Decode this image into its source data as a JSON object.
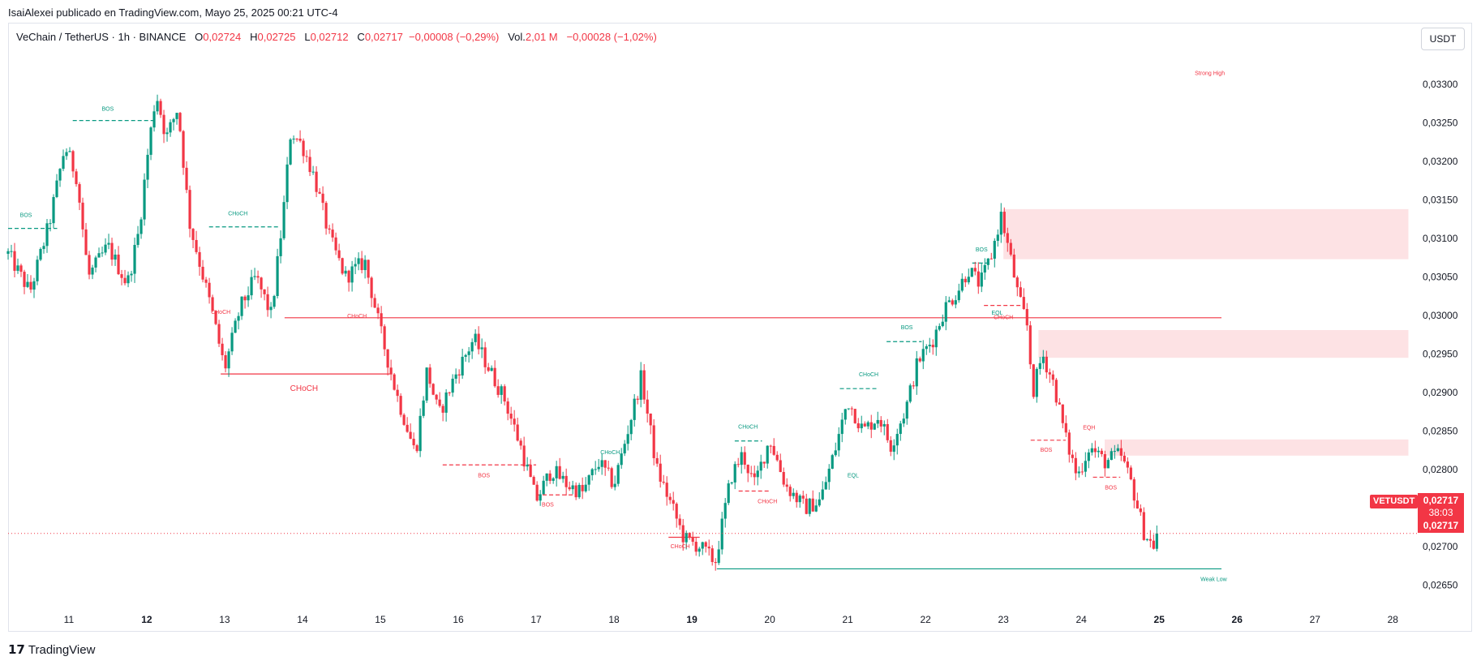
{
  "header": {
    "publisher": "IsaiAlexei publicado en TradingView.com, Mayo 25, 2025 00:21 UTC-4"
  },
  "legend": {
    "symbol": "VeChain / TetherUS · 1h · BINANCE",
    "open_label": "O",
    "open": "0,02724",
    "high_label": "H",
    "high": "0,02725",
    "low_label": "L",
    "low": "0,02712",
    "close_label": "C",
    "close": "0,02717",
    "change": "−0,00008 (−0,29%)",
    "vol_label": "Vol.",
    "vol": "2,01 M",
    "vol_change": "−0,00028 (−1,02%)"
  },
  "currency": "USDT",
  "footer": {
    "brand": "TradingView",
    "logo_icon": "tradingview-logo-icon"
  },
  "price_badge": {
    "symbol": "VETUSDT",
    "price": "0,02717",
    "countdown": "38:03",
    "price2": "0,02717"
  },
  "colors": {
    "up": "#089981",
    "down": "#f23645",
    "zone": "#fde2e4"
  },
  "chart_data": {
    "type": "candlestick",
    "y_range": [
      0.02622,
      0.0338
    ],
    "x_range": [
      10.22,
      28.32
    ],
    "y_ticks": [
      "0,03300",
      "0,03250",
      "0,03200",
      "0,03150",
      "0,03100",
      "0,03050",
      "0,03000",
      "0,02950",
      "0,02900",
      "0,02850",
      "0,02800",
      "0,02750",
      "0,02700",
      "0,02650"
    ],
    "y_tick_values": [
      0.033,
      0.0325,
      0.032,
      0.0315,
      0.031,
      0.0305,
      0.03,
      0.0295,
      0.029,
      0.0285,
      0.028,
      0.0275,
      0.027,
      0.0265
    ],
    "x_ticks": [
      {
        "day": 11,
        "label": "11",
        "bold": false
      },
      {
        "day": 12,
        "label": "12",
        "bold": true
      },
      {
        "day": 13,
        "label": "13",
        "bold": false
      },
      {
        "day": 14,
        "label": "14",
        "bold": false
      },
      {
        "day": 15,
        "label": "15",
        "bold": false
      },
      {
        "day": 16,
        "label": "16",
        "bold": false
      },
      {
        "day": 17,
        "label": "17",
        "bold": false
      },
      {
        "day": 18,
        "label": "18",
        "bold": false
      },
      {
        "day": 19,
        "label": "19",
        "bold": true
      },
      {
        "day": 20,
        "label": "20",
        "bold": false
      },
      {
        "day": 21,
        "label": "21",
        "bold": false
      },
      {
        "day": 22,
        "label": "22",
        "bold": false
      },
      {
        "day": 23,
        "label": "23",
        "bold": false
      },
      {
        "day": 24,
        "label": "24",
        "bold": false
      },
      {
        "day": 25,
        "label": "25",
        "bold": true
      },
      {
        "day": 26,
        "label": "26",
        "bold": true
      },
      {
        "day": 27,
        "label": "27",
        "bold": false
      },
      {
        "day": 28,
        "label": "28",
        "bold": false
      }
    ],
    "path_points": [
      [
        10.22,
        0.0308
      ],
      [
        10.5,
        0.0303
      ],
      [
        10.75,
        0.0312
      ],
      [
        10.95,
        0.0322
      ],
      [
        11.1,
        0.0318
      ],
      [
        11.25,
        0.0305
      ],
      [
        11.5,
        0.0309
      ],
      [
        11.75,
        0.0304
      ],
      [
        11.9,
        0.0311
      ],
      [
        12.0,
        0.032
      ],
      [
        12.12,
        0.0329
      ],
      [
        12.25,
        0.0323
      ],
      [
        12.4,
        0.0327
      ],
      [
        12.55,
        0.0312
      ],
      [
        12.7,
        0.0306
      ],
      [
        12.85,
        0.03
      ],
      [
        13.0,
        0.0293
      ],
      [
        13.2,
        0.0301
      ],
      [
        13.4,
        0.0305
      ],
      [
        13.6,
        0.03
      ],
      [
        13.75,
        0.0313
      ],
      [
        13.85,
        0.0324
      ],
      [
        14.0,
        0.0322
      ],
      [
        14.15,
        0.0318
      ],
      [
        14.35,
        0.031
      ],
      [
        14.55,
        0.0305
      ],
      [
        14.8,
        0.0307
      ],
      [
        15.0,
        0.0298
      ],
      [
        15.2,
        0.029
      ],
      [
        15.45,
        0.0282
      ],
      [
        15.6,
        0.0293
      ],
      [
        15.75,
        0.0287
      ],
      [
        15.95,
        0.0292
      ],
      [
        16.2,
        0.0297
      ],
      [
        16.4,
        0.0293
      ],
      [
        16.6,
        0.0289
      ],
      [
        16.8,
        0.0283
      ],
      [
        17.0,
        0.0276
      ],
      [
        17.2,
        0.028
      ],
      [
        17.4,
        0.0278
      ],
      [
        17.6,
        0.0277
      ],
      [
        17.8,
        0.0281
      ],
      [
        18.0,
        0.0278
      ],
      [
        18.15,
        0.0284
      ],
      [
        18.35,
        0.0292
      ],
      [
        18.55,
        0.028
      ],
      [
        18.75,
        0.0275
      ],
      [
        18.9,
        0.0271
      ],
      [
        19.1,
        0.027
      ],
      [
        19.3,
        0.0268
      ],
      [
        19.5,
        0.0279
      ],
      [
        19.65,
        0.0282
      ],
      [
        19.8,
        0.0278
      ],
      [
        20.0,
        0.0284
      ],
      [
        20.2,
        0.0278
      ],
      [
        20.45,
        0.0275
      ],
      [
        20.65,
        0.0276
      ],
      [
        20.85,
        0.0283
      ],
      [
        21.0,
        0.0289
      ],
      [
        21.2,
        0.0285
      ],
      [
        21.4,
        0.0287
      ],
      [
        21.55,
        0.0283
      ],
      [
        21.75,
        0.0288
      ],
      [
        21.9,
        0.0294
      ],
      [
        22.1,
        0.0297
      ],
      [
        22.25,
        0.0301
      ],
      [
        22.4,
        0.0303
      ],
      [
        22.55,
        0.0306
      ],
      [
        22.7,
        0.0304
      ],
      [
        22.85,
        0.0308
      ],
      [
        22.97,
        0.0313
      ],
      [
        23.1,
        0.0307
      ],
      [
        23.2,
        0.0302
      ],
      [
        23.3,
        0.0299
      ],
      [
        23.38,
        0.029
      ],
      [
        23.5,
        0.0295
      ],
      [
        23.65,
        0.0291
      ],
      [
        23.8,
        0.0284
      ],
      [
        23.95,
        0.0279
      ],
      [
        24.1,
        0.0283
      ],
      [
        24.3,
        0.0281
      ],
      [
        24.5,
        0.0282
      ],
      [
        24.65,
        0.0278
      ],
      [
        24.8,
        0.0272
      ],
      [
        24.92,
        0.027
      ],
      [
        25.0,
        0.02717
      ]
    ],
    "zones": [
      {
        "x0": 23.0,
        "x1": 28.2,
        "y0": 0.03073,
        "y1": 0.03138
      },
      {
        "x0": 23.45,
        "x1": 28.2,
        "y0": 0.02945,
        "y1": 0.02981
      },
      {
        "x0": 24.3,
        "x1": 28.2,
        "y0": 0.02818,
        "y1": 0.02839
      }
    ],
    "lines": [
      {
        "x0": 13.77,
        "x1": 25.8,
        "y": 0.02997,
        "color": "#f23645",
        "style": "solid"
      },
      {
        "x0": 19.32,
        "x1": 25.8,
        "y": 0.02671,
        "color": "#089981",
        "style": "solid"
      },
      {
        "x0": 12.95,
        "x1": 15.12,
        "y": 0.02924,
        "color": "#f23645",
        "style": "solid"
      },
      {
        "x0": 11.05,
        "x1": 12.12,
        "y": 0.03253,
        "color": "#089981",
        "style": "dashed"
      },
      {
        "x0": 10.22,
        "x1": 10.85,
        "y": 0.03113,
        "color": "#089981",
        "style": "dashed"
      },
      {
        "x0": 12.8,
        "x1": 13.7,
        "y": 0.03115,
        "color": "#089981",
        "style": "dashed"
      },
      {
        "x0": 15.8,
        "x1": 17.0,
        "y": 0.02806,
        "color": "#f23645",
        "style": "dashed"
      },
      {
        "x0": 17.0,
        "x1": 17.5,
        "y": 0.02767,
        "color": "#f23645",
        "style": "dashed"
      },
      {
        "x0": 19.6,
        "x1": 20.0,
        "y": 0.02772,
        "color": "#f23645",
        "style": "dashed"
      },
      {
        "x0": 19.55,
        "x1": 19.9,
        "y": 0.02837,
        "color": "#089981",
        "style": "dashed"
      },
      {
        "x0": 20.9,
        "x1": 21.4,
        "y": 0.02905,
        "color": "#089981",
        "style": "dashed"
      },
      {
        "x0": 21.5,
        "x1": 21.95,
        "y": 0.02966,
        "color": "#089981",
        "style": "dashed"
      },
      {
        "x0": 22.6,
        "x1": 22.85,
        "y": 0.03068,
        "color": "#089981",
        "style": "dashed"
      },
      {
        "x0": 23.35,
        "x1": 23.8,
        "y": 0.02838,
        "color": "#f23645",
        "style": "dashed"
      },
      {
        "x0": 24.15,
        "x1": 24.5,
        "y": 0.0279,
        "color": "#f23645",
        "style": "dashed"
      },
      {
        "x0": 22.75,
        "x1": 23.25,
        "y": 0.03013,
        "color": "#f23645",
        "style": "dashed"
      },
      {
        "x0": 18.7,
        "x1": 19.1,
        "y": 0.02712,
        "color": "#f23645",
        "style": "solid"
      }
    ],
    "annotations": [
      {
        "text": "Strong High",
        "day": 25.65,
        "price": 0.03312,
        "color": "#f23645",
        "size": 7
      },
      {
        "text": "Weak Low",
        "day": 25.7,
        "price": 0.02655,
        "color": "#089981",
        "size": 7
      },
      {
        "text": "BOS",
        "day": 11.5,
        "price": 0.03266,
        "color": "#089981",
        "size": 7
      },
      {
        "text": "BOS",
        "day": 10.45,
        "price": 0.03128,
        "color": "#089981",
        "size": 7
      },
      {
        "text": "CHoCH",
        "day": 13.17,
        "price": 0.0313,
        "color": "#089981",
        "size": 7
      },
      {
        "text": "CHoCH",
        "day": 12.95,
        "price": 0.03002,
        "color": "#f23645",
        "size": 7
      },
      {
        "text": "CHoCH",
        "day": 14.7,
        "price": 0.02997,
        "color": "#f23645",
        "size": 7
      },
      {
        "text": "CHoCH",
        "day": 14.02,
        "price": 0.02902,
        "color": "#f23645",
        "size": 10
      },
      {
        "text": "BOS",
        "day": 16.33,
        "price": 0.0279,
        "color": "#f23645",
        "size": 7
      },
      {
        "text": "BOS",
        "day": 17.15,
        "price": 0.02752,
        "color": "#f23645",
        "size": 7
      },
      {
        "text": "CHoCH",
        "day": 17.95,
        "price": 0.0282,
        "color": "#089981",
        "size": 7
      },
      {
        "text": "CHoCH",
        "day": 18.85,
        "price": 0.02698,
        "color": "#f23645",
        "size": 7
      },
      {
        "text": "CHoCH",
        "day": 19.72,
        "price": 0.02853,
        "color": "#089981",
        "size": 7
      },
      {
        "text": "CHoCH",
        "day": 19.97,
        "price": 0.02756,
        "color": "#f23645",
        "size": 7
      },
      {
        "text": "EQL",
        "day": 21.07,
        "price": 0.0279,
        "color": "#089981",
        "size": 7
      },
      {
        "text": "CHoCH",
        "day": 21.27,
        "price": 0.02921,
        "color": "#089981",
        "size": 7
      },
      {
        "text": "BOS",
        "day": 21.76,
        "price": 0.02982,
        "color": "#089981",
        "size": 7
      },
      {
        "text": "BOS",
        "day": 22.72,
        "price": 0.03083,
        "color": "#089981",
        "size": 7
      },
      {
        "text": "EQL",
        "day": 22.92,
        "price": 0.03001,
        "color": "#089981",
        "size": 7
      },
      {
        "text": "CHoCH",
        "day": 23.0,
        "price": 0.02995,
        "color": "#f23645",
        "size": 7
      },
      {
        "text": "BOS",
        "day": 23.55,
        "price": 0.02823,
        "color": "#f23645",
        "size": 7
      },
      {
        "text": "EQH",
        "day": 24.1,
        "price": 0.02852,
        "color": "#f23645",
        "size": 7
      },
      {
        "text": "BOS",
        "day": 24.38,
        "price": 0.02774,
        "color": "#f23645",
        "size": 7
      }
    ],
    "last_price": 0.02717
  }
}
